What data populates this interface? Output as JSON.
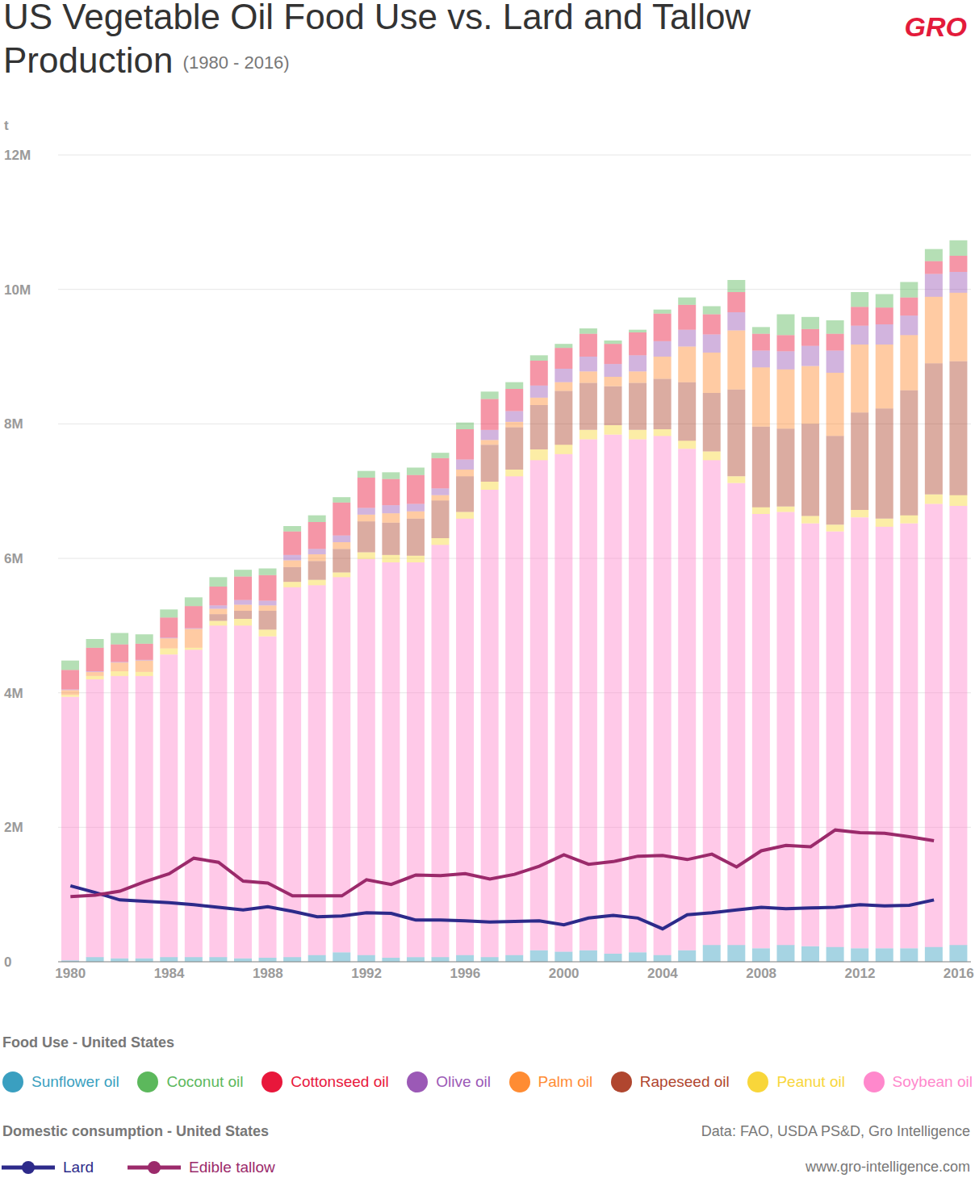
{
  "chart_data": {
    "type": "bar",
    "title": "US Vegetable Oil Food Use vs. Lard and Tallow Production",
    "subtitle": "(1980 - 2016)",
    "ylabel": "t",
    "logo": "GRO",
    "bar_legend_title": "Food Use - United States",
    "line_legend_title": "Domestic consumption - United States",
    "source": "Data: FAO, USDA PS&D, Gro Intelligence",
    "url": "www.gro-intelligence.com",
    "stacked": true,
    "grid": true,
    "categories": [
      "1980",
      null,
      null,
      null,
      "1984",
      null,
      null,
      null,
      "1988",
      null,
      null,
      null,
      "1992",
      null,
      null,
      null,
      "1996",
      null,
      null,
      null,
      "2000",
      null,
      null,
      null,
      "2004",
      null,
      null,
      null,
      "2008",
      null,
      null,
      null,
      "2012",
      null,
      null,
      null,
      "2016"
    ],
    "ylim": [
      0,
      12000000
    ],
    "yticks": [
      0,
      {
        "value": 2000000,
        "label": "2M"
      },
      {
        "value": 4000000,
        "label": "4M"
      },
      {
        "value": 6000000,
        "label": "6M"
      },
      {
        "value": 8000000,
        "label": "8M"
      },
      {
        "value": 10000000,
        "label": "10M"
      },
      {
        "value": 12000000,
        "label": "12M"
      }
    ],
    "series": [
      {
        "name": "Sunflower oil",
        "type": "bar",
        "color": "#3a9fc0",
        "values": [
          20000,
          70000,
          50000,
          50000,
          70000,
          70000,
          70000,
          50000,
          60000,
          70000,
          100000,
          140000,
          100000,
          60000,
          70000,
          70000,
          100000,
          70000,
          100000,
          170000,
          150000,
          170000,
          120000,
          140000,
          100000,
          170000,
          250000,
          250000,
          200000,
          250000,
          230000,
          220000,
          200000,
          200000,
          200000,
          220000,
          250000
        ]
      },
      {
        "name": "Coconut oil",
        "type": "bar",
        "color": "#5cb85c",
        "values": [
          140000,
          130000,
          170000,
          140000,
          120000,
          130000,
          140000,
          100000,
          100000,
          80000,
          100000,
          80000,
          100000,
          100000,
          110000,
          80000,
          100000,
          110000,
          100000,
          80000,
          60000,
          80000,
          50000,
          40000,
          60000,
          110000,
          120000,
          180000,
          100000,
          310000,
          180000,
          200000,
          220000,
          200000,
          230000,
          180000,
          230000
        ]
      },
      {
        "name": "Cottonseed oil",
        "type": "bar",
        "color": "#e8173b",
        "values": [
          290000,
          350000,
          260000,
          240000,
          300000,
          330000,
          280000,
          350000,
          380000,
          350000,
          400000,
          490000,
          450000,
          390000,
          430000,
          450000,
          450000,
          460000,
          330000,
          370000,
          310000,
          340000,
          300000,
          340000,
          410000,
          370000,
          300000,
          300000,
          250000,
          240000,
          250000,
          250000,
          280000,
          250000,
          270000,
          190000,
          240000
        ]
      },
      {
        "name": "Olive oil",
        "type": "bar",
        "color": "#9b59b6",
        "values": [
          10000,
          10000,
          10000,
          10000,
          10000,
          10000,
          50000,
          70000,
          70000,
          80000,
          80000,
          100000,
          100000,
          120000,
          110000,
          100000,
          150000,
          150000,
          160000,
          180000,
          200000,
          220000,
          190000,
          240000,
          230000,
          250000,
          270000,
          270000,
          250000,
          270000,
          300000,
          330000,
          280000,
          300000,
          290000,
          340000,
          310000
        ]
      },
      {
        "name": "Palm oil",
        "type": "bar",
        "color": "#ff8c33",
        "values": [
          70000,
          60000,
          130000,
          170000,
          150000,
          280000,
          80000,
          90000,
          80000,
          100000,
          100000,
          100000,
          100000,
          140000,
          110000,
          80000,
          100000,
          70000,
          80000,
          110000,
          130000,
          170000,
          140000,
          170000,
          330000,
          530000,
          600000,
          880000,
          880000,
          880000,
          860000,
          940000,
          1010000,
          950000,
          820000,
          990000,
          1020000
        ]
      },
      {
        "name": "Rapeseed oil",
        "type": "bar",
        "color": "#b0462f",
        "values": [
          0,
          0,
          0,
          0,
          0,
          0,
          100000,
          120000,
          280000,
          220000,
          280000,
          350000,
          460000,
          480000,
          550000,
          560000,
          530000,
          550000,
          630000,
          660000,
          800000,
          700000,
          580000,
          700000,
          750000,
          870000,
          870000,
          1290000,
          1200000,
          1160000,
          1370000,
          1320000,
          1450000,
          1640000,
          1860000,
          1950000,
          1990000
        ]
      },
      {
        "name": "Peanut oil",
        "type": "bar",
        "color": "#f8d63a",
        "values": [
          30000,
          50000,
          70000,
          60000,
          90000,
          30000,
          70000,
          100000,
          100000,
          80000,
          80000,
          70000,
          100000,
          110000,
          100000,
          100000,
          100000,
          120000,
          100000,
          160000,
          140000,
          140000,
          140000,
          140000,
          100000,
          120000,
          130000,
          100000,
          100000,
          80000,
          110000,
          100000,
          110000,
          120000,
          120000,
          140000,
          160000
        ]
      },
      {
        "name": "Soybean oil",
        "type": "bar",
        "color": "#ff88cc",
        "values": [
          3920000,
          4130000,
          4200000,
          4200000,
          4500000,
          4570000,
          4930000,
          4950000,
          4780000,
          5500000,
          5500000,
          5580000,
          5890000,
          5880000,
          5870000,
          6130000,
          6490000,
          6950000,
          7120000,
          7290000,
          7400000,
          7600000,
          7720000,
          7630000,
          7720000,
          7460000,
          7210000,
          6870000,
          6460000,
          6440000,
          6290000,
          6180000,
          6410000,
          6270000,
          6320000,
          6590000,
          6530000
        ]
      },
      {
        "name": "Lard",
        "type": "line",
        "color": "#2d2a8a",
        "values": [
          1130000,
          1030000,
          920000,
          900000,
          880000,
          850000,
          810000,
          770000,
          820000,
          750000,
          670000,
          680000,
          730000,
          720000,
          620000,
          620000,
          610000,
          590000,
          600000,
          610000,
          550000,
          650000,
          690000,
          650000,
          490000,
          700000,
          730000,
          770000,
          810000,
          790000,
          800000,
          810000,
          850000,
          830000,
          840000,
          920000,
          null
        ]
      },
      {
        "name": "Edible tallow",
        "type": "line",
        "color": "#9b2a6b",
        "values": [
          970000,
          990000,
          1050000,
          1190000,
          1310000,
          1540000,
          1480000,
          1200000,
          1170000,
          980000,
          980000,
          980000,
          1220000,
          1150000,
          1290000,
          1280000,
          1310000,
          1230000,
          1300000,
          1420000,
          1590000,
          1450000,
          1490000,
          1570000,
          1580000,
          1520000,
          1600000,
          1410000,
          1650000,
          1730000,
          1710000,
          1960000,
          1920000,
          1910000,
          1860000,
          1800000,
          null
        ]
      }
    ]
  }
}
